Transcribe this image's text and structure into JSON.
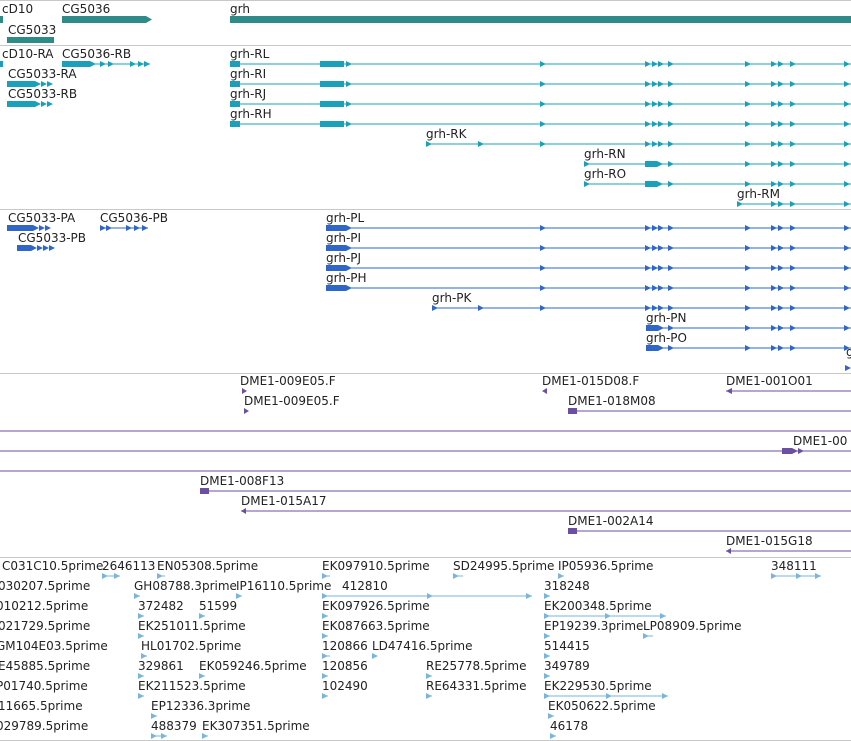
{
  "colors": {
    "gene": "#2e8b87",
    "rna": "#1aa0b8",
    "protein": "#2f66c8",
    "clone": "#6b4fa0",
    "est": "#7ab6dc",
    "divider": "#c8c8c8",
    "text": "#222222"
  },
  "tracks": {
    "genes": {
      "labels": [
        "cD10",
        "CG5036",
        "grh",
        "CG5033"
      ]
    },
    "transcripts": {
      "labels": [
        "cD10-RA",
        "CG5036-RB",
        "CG5033-RA",
        "CG5033-RB",
        "grh-RL",
        "grh-RI",
        "grh-RJ",
        "grh-RH",
        "grh-RK",
        "grh-RN",
        "grh-RO",
        "grh-RM"
      ]
    },
    "proteins": {
      "labels": [
        "CG5033-PA",
        "CG5036-PB",
        "CG5033-PB",
        "grh-PL",
        "grh-PI",
        "grh-PJ",
        "grh-PH",
        "grh-PK",
        "grh-PN",
        "grh-PO",
        "g"
      ]
    },
    "clones": {
      "labels": [
        "DME1-009E05.F",
        "DME1-015D08.F",
        "DME1-001O01",
        "DME1-009E05.F",
        "DME1-018M08",
        "DME1-00",
        "DME1-008F13",
        "DME1-015A17",
        "DME1-002A14",
        "DME1-015G18"
      ]
    },
    "ests": {
      "labels": [
        "C031C10.5prime",
        "2646113",
        "EN05308.5prime",
        "EK097910.5prime",
        "SD24995.5prime",
        "IP05936.5prime",
        "348111",
        "030207.5prime",
        "GH08788.3prime",
        "IP16110.5prime",
        "412810",
        "318248",
        "010212.5prime",
        "372482",
        "51599",
        "EK097926.5prime",
        "EK200348.5prime",
        "021729.5prime",
        "EK251011.5prime",
        "EK087663.5prime",
        "EP19239.3prime",
        "LP08909.5prime",
        "GM104E03.5prime",
        "HL01702.5prime",
        "120866",
        "LD47416.5prime",
        "514415",
        "E45885.5prime",
        "329861",
        "EK059246.5prime",
        "120856",
        "RE25778.5prime",
        "349789",
        "P01740.5prime",
        "EK211523.5prime",
        "102490",
        "RE64331.5prime",
        "EK229530.5prime",
        "11665.5prime",
        "EP12336.3prime",
        "EK050622.5prime",
        "029789.5prime",
        "488379",
        "EK307351.5prime",
        "46178"
      ]
    }
  }
}
